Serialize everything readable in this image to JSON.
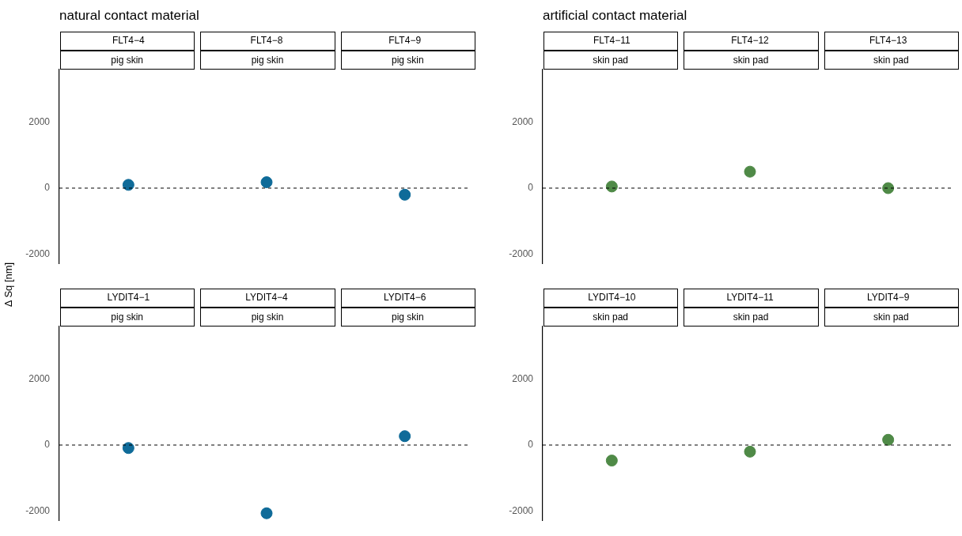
{
  "chart_data": [
    {
      "type": "scatter",
      "title": "natural contact material",
      "ylabel": "Δ Sq [nm]",
      "annotations": [
        "pig skin",
        "pig skin",
        "pig skin"
      ],
      "categories": [
        "FLT4−4",
        "FLT4−8",
        "FLT4−9"
      ],
      "values": [
        100,
        180,
        -200
      ],
      "color": "#0f6b99",
      "marker": "circle",
      "ylim": [
        -2300,
        3600
      ],
      "yticks": [
        -2000,
        0,
        2000
      ],
      "ref_lines": [
        {
          "axis": "y",
          "value": 0,
          "color": "#000000",
          "line_style": "dashed"
        }
      ]
    },
    {
      "type": "scatter",
      "title": "artificial contact material",
      "annotations": [
        "skin pad",
        "skin pad",
        "skin pad"
      ],
      "categories": [
        "FLT4−11",
        "FLT4−12",
        "FLT4−13"
      ],
      "values": [
        50,
        500,
        0
      ],
      "color": "#4f8a47",
      "marker": "circle",
      "ylim": [
        -2300,
        3600
      ],
      "yticks": [
        -2000,
        0,
        2000
      ],
      "ref_lines": [
        {
          "axis": "y",
          "value": 0,
          "color": "#000000",
          "line_style": "dashed"
        }
      ]
    },
    {
      "type": "scatter",
      "annotations": [
        "pig skin",
        "pig skin",
        "pig skin"
      ],
      "categories": [
        "LYDIT4−1",
        "LYDIT4−4",
        "LYDIT4−6"
      ],
      "values": [
        -90,
        -2070,
        270
      ],
      "color": "#0f6b99",
      "marker": "circle",
      "ylim": [
        -2300,
        3600
      ],
      "yticks": [
        -2000,
        0,
        2000
      ],
      "ref_lines": [
        {
          "axis": "y",
          "value": 0,
          "color": "#000000",
          "line_style": "dashed"
        }
      ]
    },
    {
      "type": "scatter",
      "annotations": [
        "skin pad",
        "skin pad",
        "skin pad"
      ],
      "categories": [
        "LYDIT4−10",
        "LYDIT4−11",
        "LYDIT4−9"
      ],
      "values": [
        -470,
        -200,
        160
      ],
      "color": "#4f8a47",
      "marker": "circle",
      "ylim": [
        -2300,
        3600
      ],
      "yticks": [
        -2000,
        0,
        2000
      ],
      "ref_lines": [
        {
          "axis": "y",
          "value": 0,
          "color": "#000000",
          "line_style": "dashed"
        }
      ]
    }
  ]
}
